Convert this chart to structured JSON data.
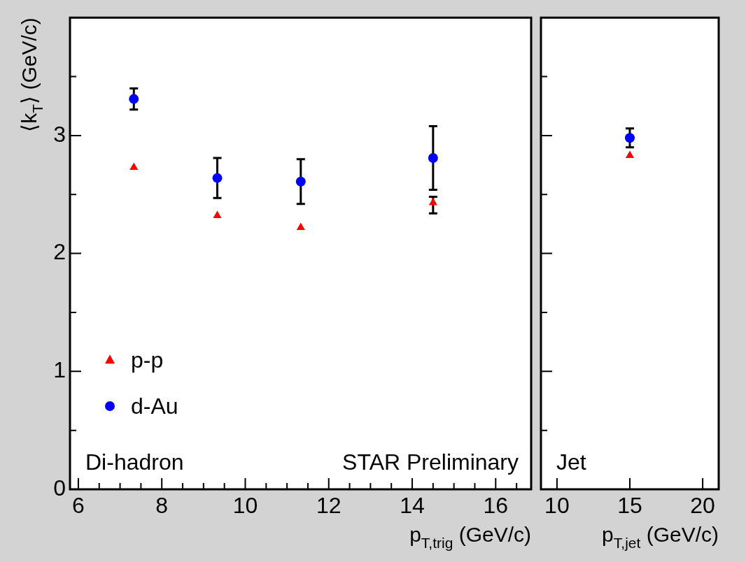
{
  "chart_data": [
    {
      "type": "scatter",
      "ylabel": "⟨k$_{T}$⟩ (GeV/c)",
      "xlabel": "p$_{T,trig}$ (GeV/c)",
      "annotations": [
        "Di-hadron",
        "STAR Preliminary"
      ],
      "xlim": [
        5.8,
        16.85
      ],
      "xticks": [
        6,
        {
          "value": 6.5,
          "label": null
        },
        {
          "value": 7,
          "label": null
        },
        {
          "value": 7.5,
          "label": null
        },
        8,
        {
          "value": 8.5,
          "label": null
        },
        {
          "value": 9,
          "label": null
        },
        {
          "value": 9.5,
          "label": null
        },
        10,
        {
          "value": 10.5,
          "label": null
        },
        {
          "value": 11,
          "label": null
        },
        {
          "value": 11.5,
          "label": null
        },
        12,
        {
          "value": 12.5,
          "label": null
        },
        {
          "value": 13,
          "label": null
        },
        {
          "value": 13.5,
          "label": null
        },
        14,
        {
          "value": 14.5,
          "label": null
        },
        {
          "value": 15,
          "label": null
        },
        {
          "value": 15.5,
          "label": null
        },
        16,
        {
          "value": 16.5,
          "label": null
        }
      ],
      "ylim": [
        0,
        4
      ],
      "yticks": [
        0,
        {
          "value": 0.5,
          "label": null
        },
        1,
        {
          "value": 1.5,
          "label": null
        },
        2,
        {
          "value": 2.5,
          "label": null
        },
        3,
        {
          "value": 3.5,
          "label": null
        }
      ],
      "legend": "bottom left",
      "grid": false,
      "series": [
        {
          "name": "p-p",
          "color": "#ff0000",
          "marker": "triangle",
          "x": [
            7.33,
            9.33,
            11.33,
            14.5
          ],
          "values": [
            2.73,
            2.32,
            2.22,
            2.43
          ],
          "errors": [
            null,
            null,
            null,
            [
              2.34,
              2.48
            ]
          ]
        },
        {
          "name": "d-Au",
          "color": "#0000ff",
          "marker": "circle",
          "x": [
            7.33,
            9.33,
            11.33,
            14.5
          ],
          "values": [
            3.31,
            2.64,
            2.61,
            2.81
          ],
          "errors": [
            [
              3.22,
              3.4
            ],
            [
              2.47,
              2.81
            ],
            [
              2.42,
              2.8
            ],
            [
              2.54,
              3.08
            ]
          ]
        }
      ]
    },
    {
      "type": "scatter",
      "xlabel": "p$_{T,jet}$ (GeV/c)",
      "annotations": [
        "Jet"
      ],
      "tick_labels": "x",
      "xlim": [
        8.9,
        21.1
      ],
      "xticks": [
        10,
        15,
        20
      ],
      "ylim": [
        0,
        4
      ],
      "yticks": [
        0,
        {
          "value": 0.5,
          "label": null
        },
        1,
        {
          "value": 1.5,
          "label": null
        },
        2,
        {
          "value": 2.5,
          "label": null
        },
        3,
        {
          "value": 3.5,
          "label": null
        }
      ],
      "legend": false,
      "grid": false,
      "series": [
        {
          "color": "#ff0000",
          "marker": "triangle",
          "x": [
            15
          ],
          "values": [
            2.83
          ],
          "errors": [
            null
          ]
        },
        {
          "color": "#0000ff",
          "marker": "circle",
          "x": [
            15
          ],
          "values": [
            2.98
          ],
          "errors": [
            [
              2.9,
              3.06
            ]
          ]
        }
      ]
    }
  ]
}
